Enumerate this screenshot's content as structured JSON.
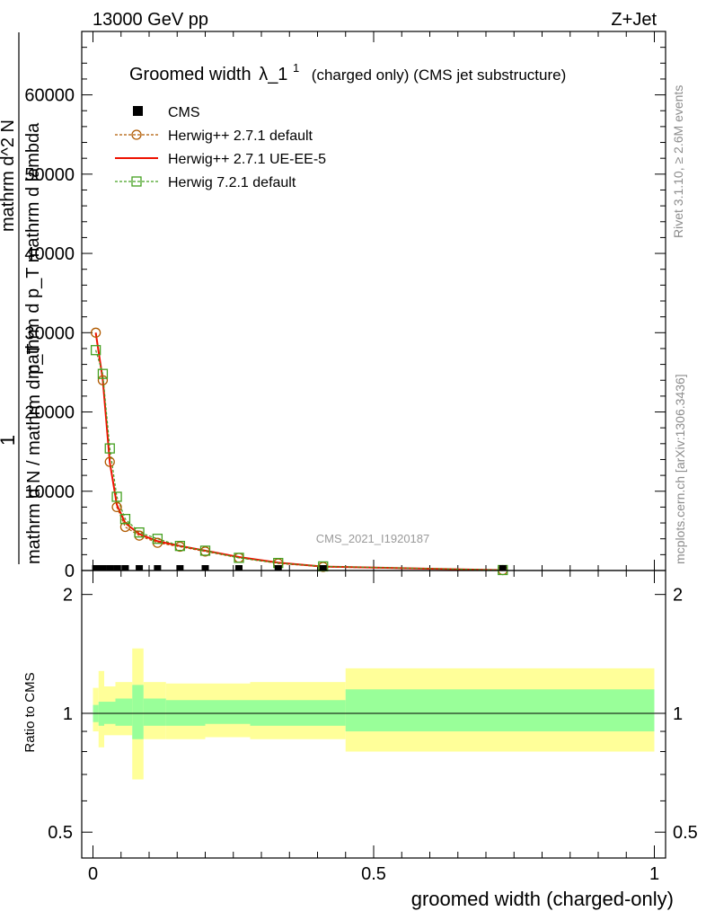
{
  "header": {
    "energy": "13000 GeV pp",
    "process": "Z+Jet"
  },
  "side_labels": {
    "rivet": "Rivet 3.1.10, ≥ 2.6M events",
    "mcplots": "mcplots.cern.ch [arXiv:1306.3436]"
  },
  "watermark": "CMS_2021_I1920187",
  "colors": {
    "herwig_271_default": "#b05a00",
    "herwig_271_ueee5": "#ee1100",
    "herwig_721_default": "#44a020",
    "band_stat": "#99ff99",
    "band_total": "#ffff99",
    "data": "#000000"
  },
  "chart_data": [
    {
      "type": "line",
      "title_main": "Groomed width",
      "title_symbol": "λ_1",
      "title_sup": "1",
      "title_rest": "(charged only) (CMS jet substructure)",
      "ylabel_parts": [
        "1",
        "mathrm d N / mathrm d p_T",
        "mathrm d^2 N",
        "mathrm d p_T mathrm d lambda"
      ],
      "xlim": [
        -0.02,
        1.02
      ],
      "ylim": [
        0,
        68000
      ],
      "y_ticks": [
        0,
        10000,
        20000,
        30000,
        40000,
        50000,
        60000
      ],
      "y_tick_labels": [
        "0",
        "10000",
        "20000",
        "30000",
        "40000",
        "50000",
        "60000"
      ],
      "legend": [
        "CMS",
        "Herwig++ 2.7.1 default",
        "Herwig++ 2.7.1 UE-EE-5",
        "Herwig 7.2.1 default"
      ],
      "legend_position": "top-left",
      "series": [
        {
          "name": "CMS",
          "marker": "filled-square",
          "x": [
            0.005,
            0.0175,
            0.03,
            0.0425,
            0.0575,
            0.0825,
            0.115,
            0.155,
            0.2,
            0.26,
            0.33,
            0.41,
            0.73
          ],
          "values": [
            0,
            0,
            0,
            0,
            0,
            0,
            0,
            0,
            0,
            0,
            0,
            0,
            0
          ]
        },
        {
          "name": "Herwig++ 2.7.1 default",
          "marker": "open-circle",
          "x": [
            0.005,
            0.0175,
            0.03,
            0.0425,
            0.0575,
            0.0825,
            0.115,
            0.155,
            0.2,
            0.26,
            0.33,
            0.41,
            0.73
          ],
          "values": [
            30000,
            24000,
            13700,
            8000,
            5500,
            4400,
            3500,
            3000,
            2400,
            1600,
            900,
            450,
            50
          ]
        },
        {
          "name": "Herwig++ 2.7.1 UE-EE-5",
          "marker": "none",
          "x": [
            0.005,
            0.0175,
            0.03,
            0.0425,
            0.0575,
            0.0825,
            0.115,
            0.155,
            0.2,
            0.26,
            0.33,
            0.41,
            0.73
          ],
          "values": [
            30000,
            24100,
            13600,
            8300,
            6000,
            4600,
            3700,
            3100,
            2500,
            1700,
            1000,
            500,
            50
          ]
        },
        {
          "name": "Herwig 7.2.1 default",
          "marker": "open-square",
          "x": [
            0.005,
            0.0175,
            0.03,
            0.0425,
            0.0575,
            0.0825,
            0.115,
            0.155,
            0.2,
            0.26,
            0.33,
            0.41,
            0.73
          ],
          "values": [
            27800,
            24800,
            15400,
            9300,
            6500,
            4800,
            4000,
            3100,
            2500,
            1600,
            950,
            520,
            60
          ]
        }
      ]
    },
    {
      "type": "area",
      "ylabel": "Ratio to CMS",
      "xlabel": "groomed width (charged-only)",
      "xlim": [
        -0.02,
        1.02
      ],
      "ylim": [
        0.43,
        2.3
      ],
      "x_ticks": [
        0,
        0.5,
        1
      ],
      "x_tick_labels": [
        "0",
        "0.5",
        "1"
      ],
      "y_ticks": [
        0.5,
        1,
        2
      ],
      "y_tick_labels": [
        "0.5",
        "1",
        "2"
      ],
      "bin_edges": [
        0,
        0.01,
        0.02,
        0.04,
        0.07,
        0.09,
        0.13,
        0.2,
        0.28,
        0.45,
        1.0
      ],
      "stat_band": {
        "name": "stat",
        "lower": [
          0.95,
          0.93,
          0.94,
          0.93,
          0.86,
          0.93,
          0.93,
          0.94,
          0.93,
          0.9
        ],
        "upper": [
          1.05,
          1.07,
          1.07,
          1.09,
          1.18,
          1.09,
          1.08,
          1.08,
          1.08,
          1.15
        ]
      },
      "total_band": {
        "name": "total",
        "lower": [
          0.9,
          0.82,
          0.88,
          0.88,
          0.68,
          0.86,
          0.86,
          0.87,
          0.86,
          0.8
        ],
        "upper": [
          1.16,
          1.28,
          1.17,
          1.2,
          1.46,
          1.2,
          1.19,
          1.19,
          1.2,
          1.3
        ]
      },
      "reference_line": 1
    }
  ]
}
